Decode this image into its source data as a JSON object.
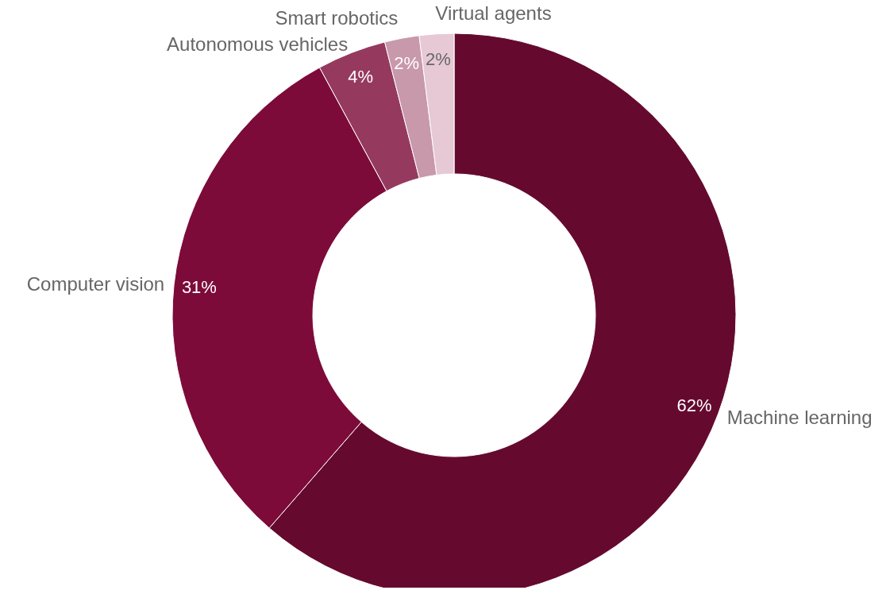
{
  "chart_data": {
    "type": "donut",
    "categories": [
      "Machine learning",
      "Computer vision",
      "Autonomous vehicles",
      "Smart robotics",
      "Virtual agents"
    ],
    "values": [
      62,
      31,
      4,
      2,
      2
    ],
    "colors": [
      "#650a2e",
      "#7d0b3a",
      "#953a5e",
      "#c898ab",
      "#e6c9d5"
    ],
    "value_labels": [
      "62%",
      "31%",
      "4%",
      "2%",
      "2%"
    ],
    "legend": false
  }
}
